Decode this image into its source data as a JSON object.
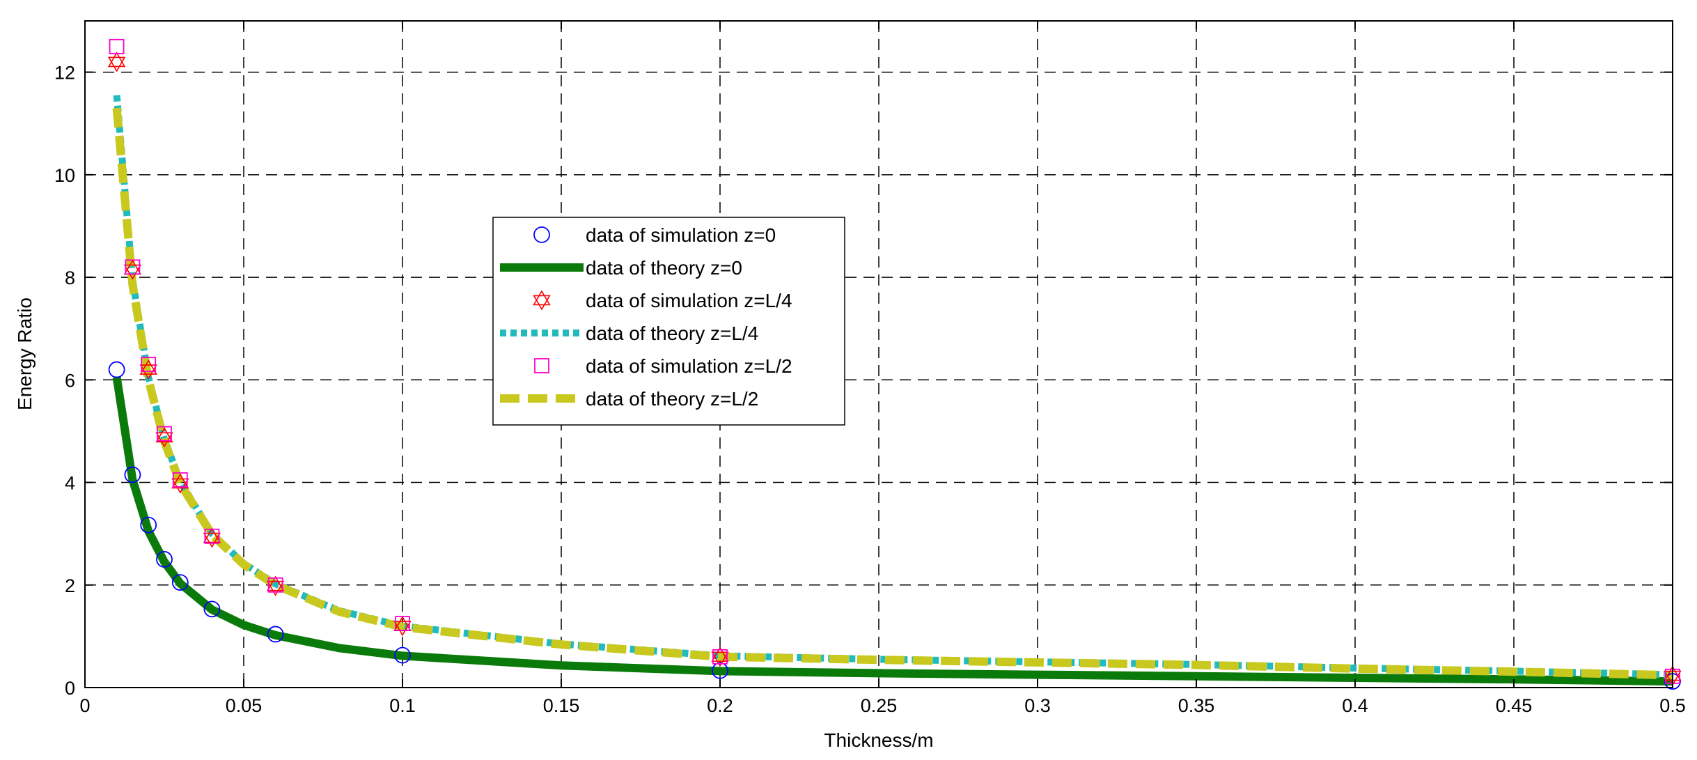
{
  "chart_data": {
    "type": "line",
    "title": "",
    "xlabel": "Thickness/m",
    "ylabel": "Energy Ratio",
    "xlim": [
      0,
      0.5
    ],
    "ylim": [
      0,
      13
    ],
    "xticks": [
      "0",
      "0.05",
      "0.1",
      "0.15",
      "0.2",
      "0.25",
      "0.3",
      "0.35",
      "0.4",
      "0.45",
      "0.5"
    ],
    "yticks": [
      "0",
      "2",
      "4",
      "6",
      "8",
      "10",
      "12"
    ],
    "grid": true,
    "legend_position": "center",
    "series": [
      {
        "name": "data of simulation z=0",
        "kind": "markers",
        "marker": "circle",
        "color": "#0000ff",
        "points": [
          [
            0.01,
            6.2
          ],
          [
            0.015,
            4.15
          ],
          [
            0.02,
            3.17
          ],
          [
            0.025,
            2.5
          ],
          [
            0.03,
            2.05
          ],
          [
            0.04,
            1.53
          ],
          [
            0.06,
            1.04
          ],
          [
            0.1,
            0.63
          ],
          [
            0.2,
            0.33
          ],
          [
            0.5,
            0.12
          ]
        ]
      },
      {
        "name": "data of theory z=0",
        "kind": "line",
        "style": "solid",
        "color": "#0a7a0a",
        "points": [
          [
            0.01,
            6.05
          ],
          [
            0.015,
            4.05
          ],
          [
            0.02,
            3.05
          ],
          [
            0.025,
            2.45
          ],
          [
            0.03,
            2.03
          ],
          [
            0.04,
            1.52
          ],
          [
            0.05,
            1.22
          ],
          [
            0.06,
            1.02
          ],
          [
            0.08,
            0.77
          ],
          [
            0.1,
            0.62
          ],
          [
            0.15,
            0.43
          ],
          [
            0.2,
            0.32
          ],
          [
            0.25,
            0.28
          ],
          [
            0.3,
            0.25
          ],
          [
            0.35,
            0.22
          ],
          [
            0.4,
            0.19
          ],
          [
            0.45,
            0.16
          ],
          [
            0.5,
            0.12
          ]
        ]
      },
      {
        "name": "data of simulation z=L/4",
        "kind": "markers",
        "marker": "hexagram",
        "color": "#ff0000",
        "points": [
          [
            0.01,
            12.2
          ],
          [
            0.015,
            8.15
          ],
          [
            0.02,
            6.2
          ],
          [
            0.025,
            4.88
          ],
          [
            0.03,
            3.98
          ],
          [
            0.04,
            2.92
          ],
          [
            0.06,
            1.98
          ],
          [
            0.1,
            1.2
          ],
          [
            0.2,
            0.6
          ],
          [
            0.5,
            0.23
          ]
        ]
      },
      {
        "name": "data of theory z=L/4",
        "kind": "line",
        "style": "dotted",
        "color": "#22bbbb",
        "points": [
          [
            0.01,
            11.55
          ],
          [
            0.015,
            7.95
          ],
          [
            0.02,
            6.05
          ],
          [
            0.025,
            4.85
          ],
          [
            0.03,
            4.02
          ],
          [
            0.04,
            3.0
          ],
          [
            0.05,
            2.42
          ],
          [
            0.06,
            2.02
          ],
          [
            0.08,
            1.5
          ],
          [
            0.1,
            1.2
          ],
          [
            0.15,
            0.85
          ],
          [
            0.2,
            0.62
          ],
          [
            0.25,
            0.55
          ],
          [
            0.3,
            0.5
          ],
          [
            0.35,
            0.45
          ],
          [
            0.4,
            0.38
          ],
          [
            0.45,
            0.32
          ],
          [
            0.5,
            0.25
          ]
        ]
      },
      {
        "name": "data of simulation z=L/2",
        "kind": "markers",
        "marker": "square",
        "color": "#ff00cc",
        "points": [
          [
            0.01,
            12.5
          ],
          [
            0.015,
            8.2
          ],
          [
            0.02,
            6.3
          ],
          [
            0.025,
            4.95
          ],
          [
            0.03,
            4.05
          ],
          [
            0.04,
            2.95
          ],
          [
            0.06,
            2.0
          ],
          [
            0.1,
            1.25
          ],
          [
            0.2,
            0.6
          ],
          [
            0.5,
            0.22
          ]
        ]
      },
      {
        "name": "data of theory z=L/2",
        "kind": "line",
        "style": "dashed",
        "color": "#c8c81e",
        "points": [
          [
            0.01,
            11.3
          ],
          [
            0.015,
            7.85
          ],
          [
            0.02,
            6.0
          ],
          [
            0.025,
            4.8
          ],
          [
            0.03,
            3.98
          ],
          [
            0.04,
            2.98
          ],
          [
            0.05,
            2.4
          ],
          [
            0.06,
            2.0
          ],
          [
            0.08,
            1.48
          ],
          [
            0.1,
            1.18
          ],
          [
            0.15,
            0.84
          ],
          [
            0.2,
            0.6
          ],
          [
            0.25,
            0.54
          ],
          [
            0.3,
            0.49
          ],
          [
            0.35,
            0.44
          ],
          [
            0.4,
            0.37
          ],
          [
            0.45,
            0.31
          ],
          [
            0.5,
            0.24
          ]
        ]
      }
    ]
  }
}
